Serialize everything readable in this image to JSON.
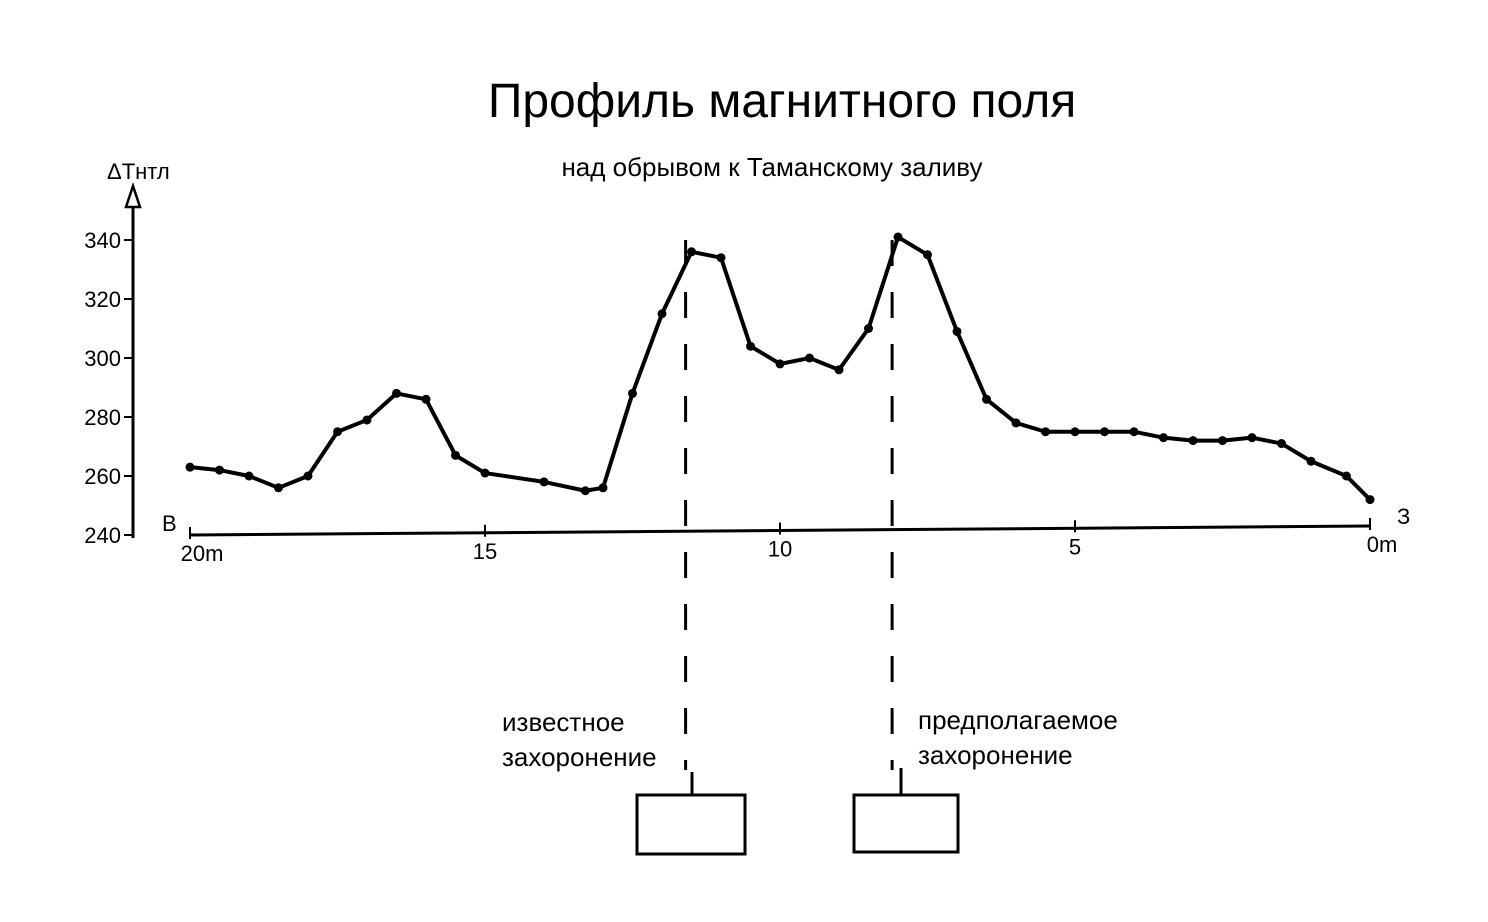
{
  "chart_data": {
    "type": "line",
    "title": "Профиль магнитного поля",
    "subtitle": "над обрывом  к Таманскому заливу",
    "ylabel": "ΔТнтл",
    "ylim": [
      240,
      340
    ],
    "yticks": [
      "240",
      "260",
      "280",
      "300",
      "320",
      "340"
    ],
    "xlim": [
      20,
      0
    ],
    "xticks": [
      "20m",
      "15",
      "10",
      "5",
      "0m"
    ],
    "x_left_label": "В",
    "x_right_label": "З",
    "grid": false,
    "series": [
      {
        "x": [
          20,
          19.5,
          19,
          18.5,
          18,
          17.5,
          17,
          16.5,
          16,
          15.5,
          15,
          14,
          13.3,
          13,
          12.5,
          12,
          11.5,
          11,
          10.5,
          10,
          9.5,
          9,
          8.5,
          8,
          7.5,
          7,
          6.5,
          6,
          5.5,
          5,
          4.5,
          4,
          3.5,
          3,
          2.5,
          2,
          1.5,
          1,
          0.4,
          0
        ],
        "y": [
          263,
          262,
          260,
          256,
          260,
          275,
          279,
          288,
          286,
          267,
          261,
          258,
          255,
          256,
          288,
          315,
          336,
          334,
          304,
          298,
          300,
          296,
          310,
          341,
          335,
          309,
          286,
          278,
          275,
          275,
          275,
          275,
          273,
          272,
          272,
          273,
          271,
          265,
          260,
          252
        ]
      }
    ],
    "markers": [
      {
        "x": 11.6,
        "label": "известное захоронение"
      },
      {
        "x": 8.1,
        "label": "предполагаемое захоронение"
      }
    ]
  }
}
